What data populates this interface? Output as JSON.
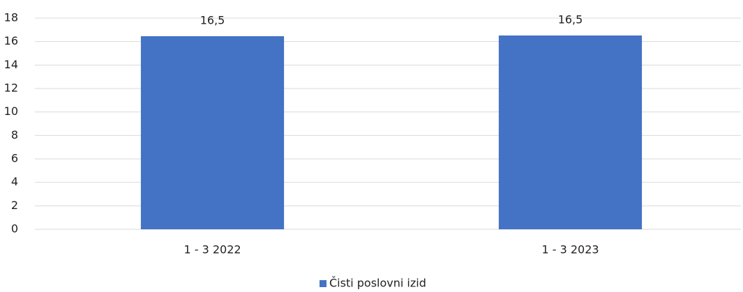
{
  "chart_data": {
    "type": "bar",
    "categories": [
      "1 - 3 2022",
      "1 - 3 2023"
    ],
    "series": [
      {
        "name": "Čisti poslovni izid",
        "color": "#4472c4",
        "values": [
          16.46,
          16.52
        ],
        "value_labels": [
          "16,5",
          "16,5"
        ]
      }
    ],
    "ylim": [
      0,
      18
    ],
    "yticks": [
      0,
      2,
      4,
      6,
      8,
      10,
      12,
      14,
      16,
      18
    ],
    "grid": true,
    "legend": "bottom"
  }
}
